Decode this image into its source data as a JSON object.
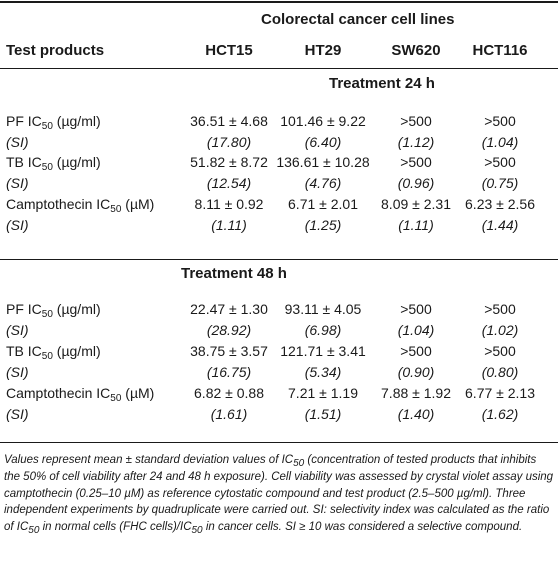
{
  "table": {
    "group_header": "Colorectal cancer cell lines",
    "row_header": "Test products",
    "columns": [
      "HCT15",
      "HT29",
      "SW620",
      "HCT116"
    ],
    "sections": [
      {
        "title": "Treatment 24 h",
        "rows": [
          {
            "label": "PF IC",
            "sub": "50",
            "unit": " (µg/ml)",
            "values": [
              "36.51 ± 4.68",
              "101.46 ± 9.22",
              ">500",
              ">500"
            ]
          },
          {
            "label": "(SI)",
            "values": [
              "(17.80)",
              "(6.40)",
              "(1.12)",
              "(1.04)"
            ]
          },
          {
            "label": "TB IC",
            "sub": "50",
            "unit": " (µg/ml)",
            "values": [
              "51.82 ± 8.72",
              "136.61 ± 10.28",
              ">500",
              ">500"
            ]
          },
          {
            "label": "(SI)",
            "values": [
              "(12.54)",
              "(4.76)",
              "(0.96)",
              "(0.75)"
            ]
          },
          {
            "label": "Camptothecin IC",
            "sub": "50",
            "unit": " (µM)",
            "values": [
              "8.11 ± 0.92",
              "6.71 ± 2.01",
              "8.09 ± 2.31",
              "6.23 ± 2.56"
            ]
          },
          {
            "label": "(SI)",
            "values": [
              "(1.11)",
              "(1.25)",
              "(1.11)",
              "(1.44)"
            ]
          }
        ]
      },
      {
        "title": "Treatment 48 h",
        "rows": [
          {
            "label": "PF IC",
            "sub": "50",
            "unit": " (µg/ml)",
            "values": [
              "22.47 ± 1.30",
              "93.11 ± 4.05",
              ">500",
              ">500"
            ]
          },
          {
            "label": "(SI)",
            "values": [
              "(28.92)",
              "(6.98)",
              "(1.04)",
              "(1.02)"
            ]
          },
          {
            "label": "TB IC",
            "sub": "50",
            "unit": " (µg/ml)",
            "values": [
              "38.75 ± 3.57",
              "121.71 ± 3.41",
              ">500",
              ">500"
            ]
          },
          {
            "label": "(SI)",
            "values": [
              "(16.75)",
              "(5.34)",
              "(0.90)",
              "(0.80)"
            ]
          },
          {
            "label": "Camptothecin IC",
            "sub": "50",
            "unit": " (µM)",
            "values": [
              "6.82 ± 0.88",
              "7.21 ± 1.19",
              "7.88 ± 1.92",
              "6.77 ± 2.13"
            ]
          },
          {
            "label": "(SI)",
            "values": [
              "(1.61)",
              "(1.51)",
              "(1.40)",
              "(1.62)"
            ]
          }
        ]
      }
    ]
  },
  "footnote": {
    "p1": "Values represent mean ± standard deviation values of IC",
    "s1": "50",
    "p2": " (concentration of tested products that inhibits the 50% of cell viability after 24 and 48 h exposure). Cell viability was assessed by crystal violet assay using camptothecin (0.25–10 µM) as reference cytostatic compound and test product (2.5–500 µg/ml). Three independent experiments by quadruplicate were carried out. SI: selectivity index was calculated as the ratio of IC",
    "s2": "50",
    "p3": " in normal cells (FHC cells)/IC",
    "s3": "50",
    "p4": " in cancer cells. SI ≥ 10 was considered a selective compound."
  }
}
